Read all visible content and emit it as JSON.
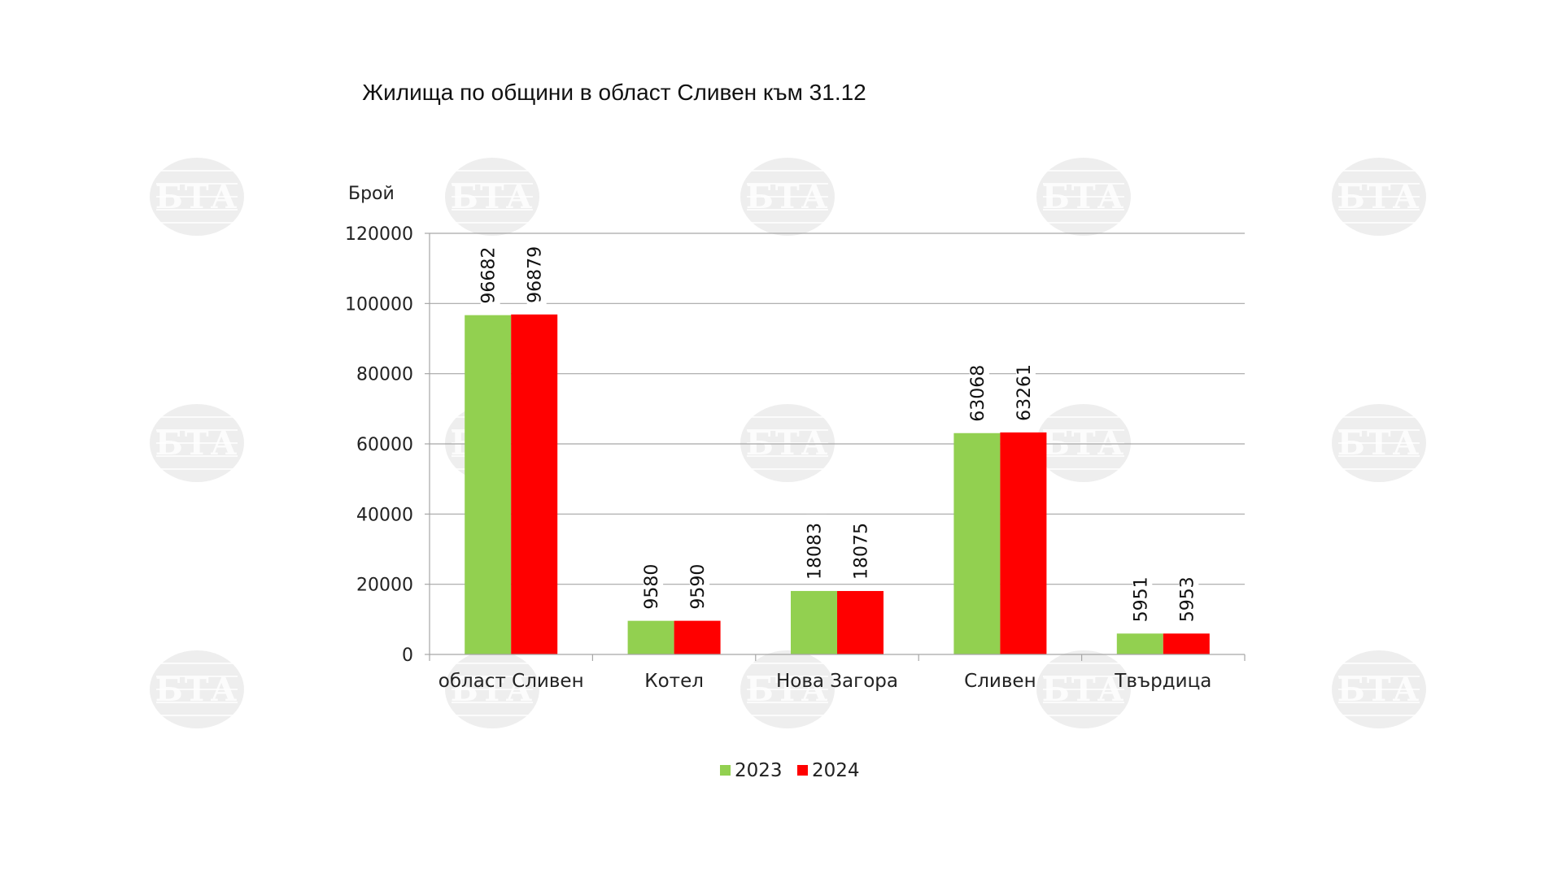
{
  "colors": {
    "series_2023": "#92d050",
    "series_2024": "#ff0000",
    "grid": "#a6a6a6",
    "watermark": "#d9d9d9"
  },
  "watermark_text": "БТА",
  "chart_data": {
    "type": "bar",
    "title": "Жилища по общини в област Сливен към 31.12",
    "ylabel": "Брой",
    "xlabel": "",
    "ylim": [
      0,
      120000
    ],
    "yticks": [
      "0",
      "20000",
      "40000",
      "60000",
      "80000",
      "100000",
      "120000"
    ],
    "grid": true,
    "legend_position": "bottom",
    "categories": [
      "област Сливен",
      "Котел",
      "Нова Загора",
      "Сливен",
      "Твърдица"
    ],
    "series": [
      {
        "name": "2023",
        "values": [
          96682,
          9580,
          18083,
          63068,
          5951
        ]
      },
      {
        "name": "2024",
        "values": [
          96879,
          9590,
          18075,
          63261,
          5953
        ]
      }
    ]
  }
}
